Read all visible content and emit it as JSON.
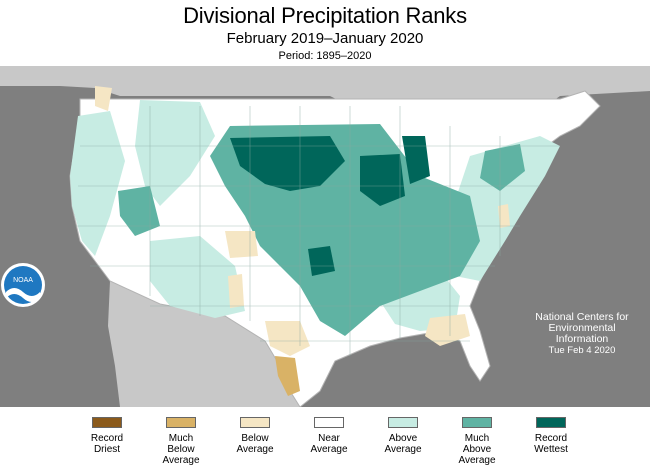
{
  "header": {
    "title": "Divisional Precipitation Ranks",
    "subtitle": "February 2019–January 2020",
    "period": "Period: 1895–2020"
  },
  "credit": {
    "line1": "National Centers for",
    "line2": "Environmental",
    "line3": "Information",
    "date": "Tue Feb  4 2020",
    "logo_text": "NOAA"
  },
  "colors": {
    "record_driest": "#8b5a1b",
    "much_below": "#d9b266",
    "below": "#f5e6c4",
    "near": "#ffffff",
    "above": "#c7ece3",
    "much_above": "#5fb3a3",
    "record_wettest": "#00665a",
    "background": "#7f7f7f",
    "land_outside": "#c8c8c8",
    "water": "#7f7f7f"
  },
  "legend": [
    {
      "key": "record_driest",
      "label": "Record\nDriest"
    },
    {
      "key": "much_below",
      "label": "Much\nBelow\nAverage"
    },
    {
      "key": "below",
      "label": "Below\nAverage"
    },
    {
      "key": "near",
      "label": "Near\nAverage"
    },
    {
      "key": "above",
      "label": "Above\nAverage"
    },
    {
      "key": "much_above",
      "label": "Much\nAbove\nAverage"
    },
    {
      "key": "record_wettest",
      "label": "Record\nWettest"
    }
  ]
}
